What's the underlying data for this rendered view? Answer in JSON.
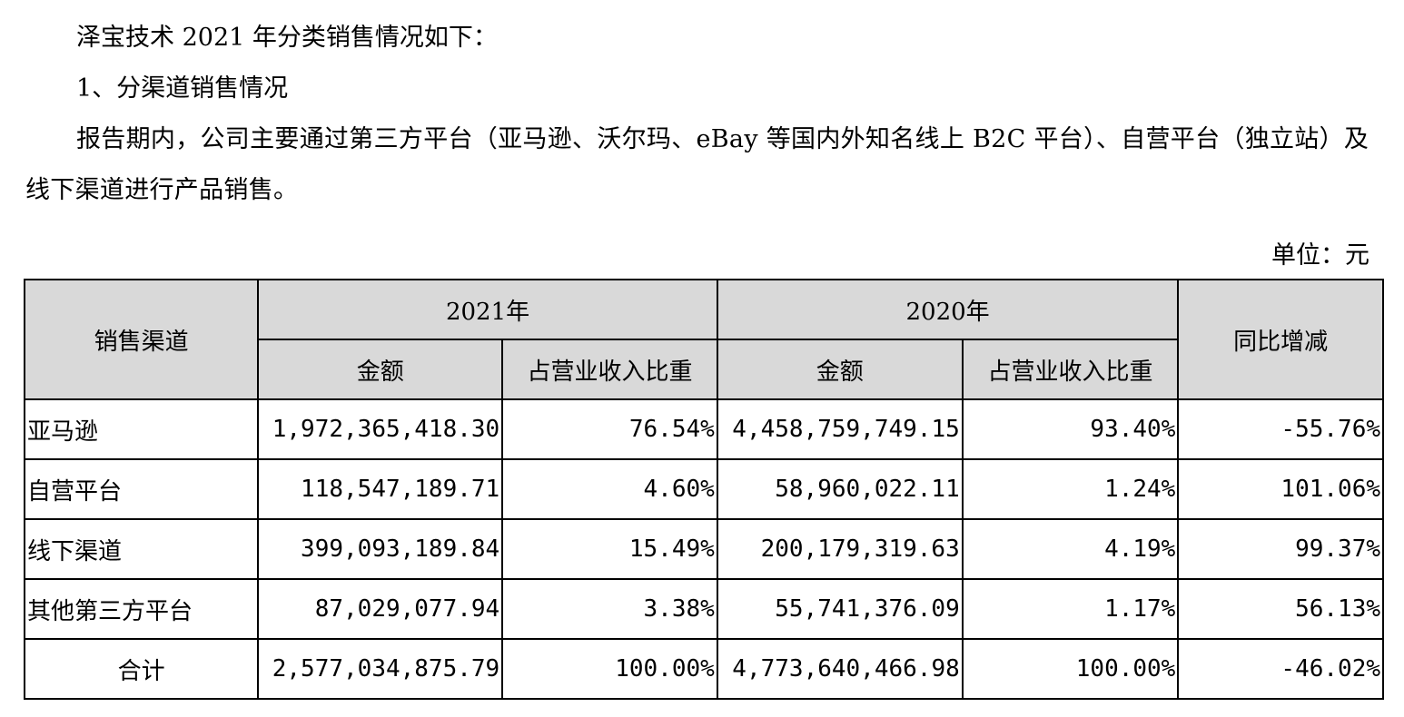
{
  "paragraphs": {
    "intro": "泽宝技术 2021 年分类销售情况如下：",
    "section": "1、分渠道销售情况",
    "body": "报告期内，公司主要通过第三方平台（亚马逊、沃尔玛、eBay 等国内外知名线上 B2C 平台）、自营平台（独立站）及线下渠道进行产品销售。"
  },
  "unit_label": "单位：元",
  "table": {
    "headers": {
      "channel": "销售渠道",
      "year_2021": "2021年",
      "year_2020": "2020年",
      "yoy": "同比增减",
      "amount_2021": "金额",
      "share_2021": "占营业收入比重",
      "amount_2020": "金额",
      "share_2020": "占营业收入比重"
    },
    "rows": [
      {
        "channel": "亚马逊",
        "amount_2021": "1,972,365,418.30",
        "share_2021": "76.54%",
        "amount_2020": "4,458,759,749.15",
        "share_2020": "93.40%",
        "yoy": "-55.76%"
      },
      {
        "channel": "自营平台",
        "amount_2021": "118,547,189.71",
        "share_2021": "4.60%",
        "amount_2020": "58,960,022.11",
        "share_2020": "1.24%",
        "yoy": "101.06%"
      },
      {
        "channel": "线下渠道",
        "amount_2021": "399,093,189.84",
        "share_2021": "15.49%",
        "amount_2020": "200,179,319.63",
        "share_2020": "4.19%",
        "yoy": "99.37%"
      },
      {
        "channel": "其他第三方平台",
        "amount_2021": "87,029,077.94",
        "share_2021": "3.38%",
        "amount_2020": "55,741,376.09",
        "share_2020": "1.17%",
        "yoy": "56.13%"
      }
    ],
    "total": {
      "label": "合计",
      "amount_2021": "2,577,034,875.79",
      "share_2021": "100.00%",
      "amount_2020": "4,773,640,466.98",
      "share_2020": "100.00%",
      "yoy": "-46.02%"
    }
  }
}
